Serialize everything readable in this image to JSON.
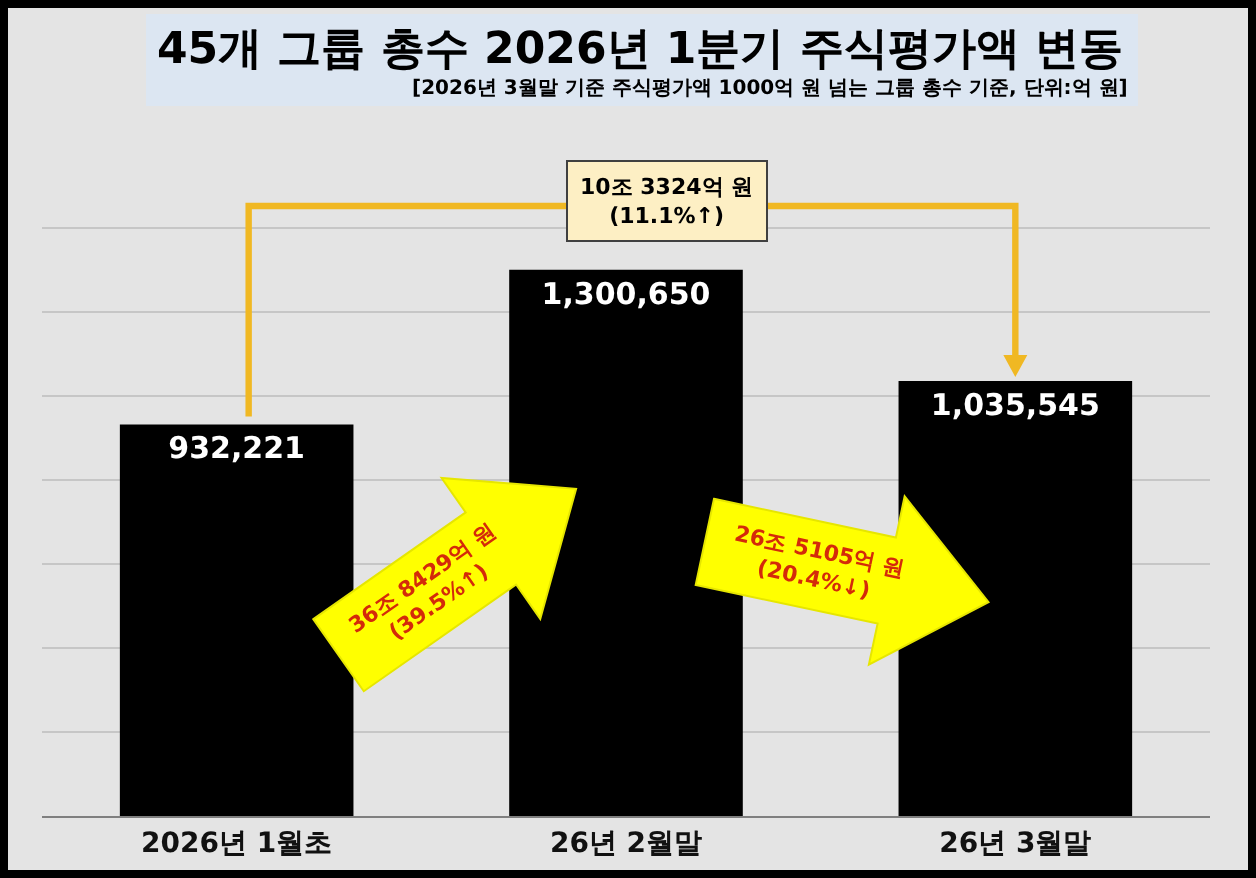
{
  "chart_data": {
    "type": "bar",
    "title": "45개 그룹 총수 2026년 1분기 주식평가액 변동",
    "subtitle": "[2026년 3월말 기준 주식평가액 1000억 원 넘는 그룹 총수 기준, 단위:억 원]",
    "categories": [
      "2026년 1월초",
      "26년 2월말",
      "26년 3월말"
    ],
    "values": [
      932221,
      1300650,
      1035545
    ],
    "value_labels": [
      "932,221",
      "1,300,650",
      "1,035,545"
    ],
    "color": "#000000",
    "grid": "y",
    "tick_labels": "x",
    "annotations": [
      "10조 3324억 원\n(11.1%↑)",
      "36조 8429억 원\n(39.5%↑)",
      "26조 5105억 원\n(20.4%↓)"
    ]
  }
}
